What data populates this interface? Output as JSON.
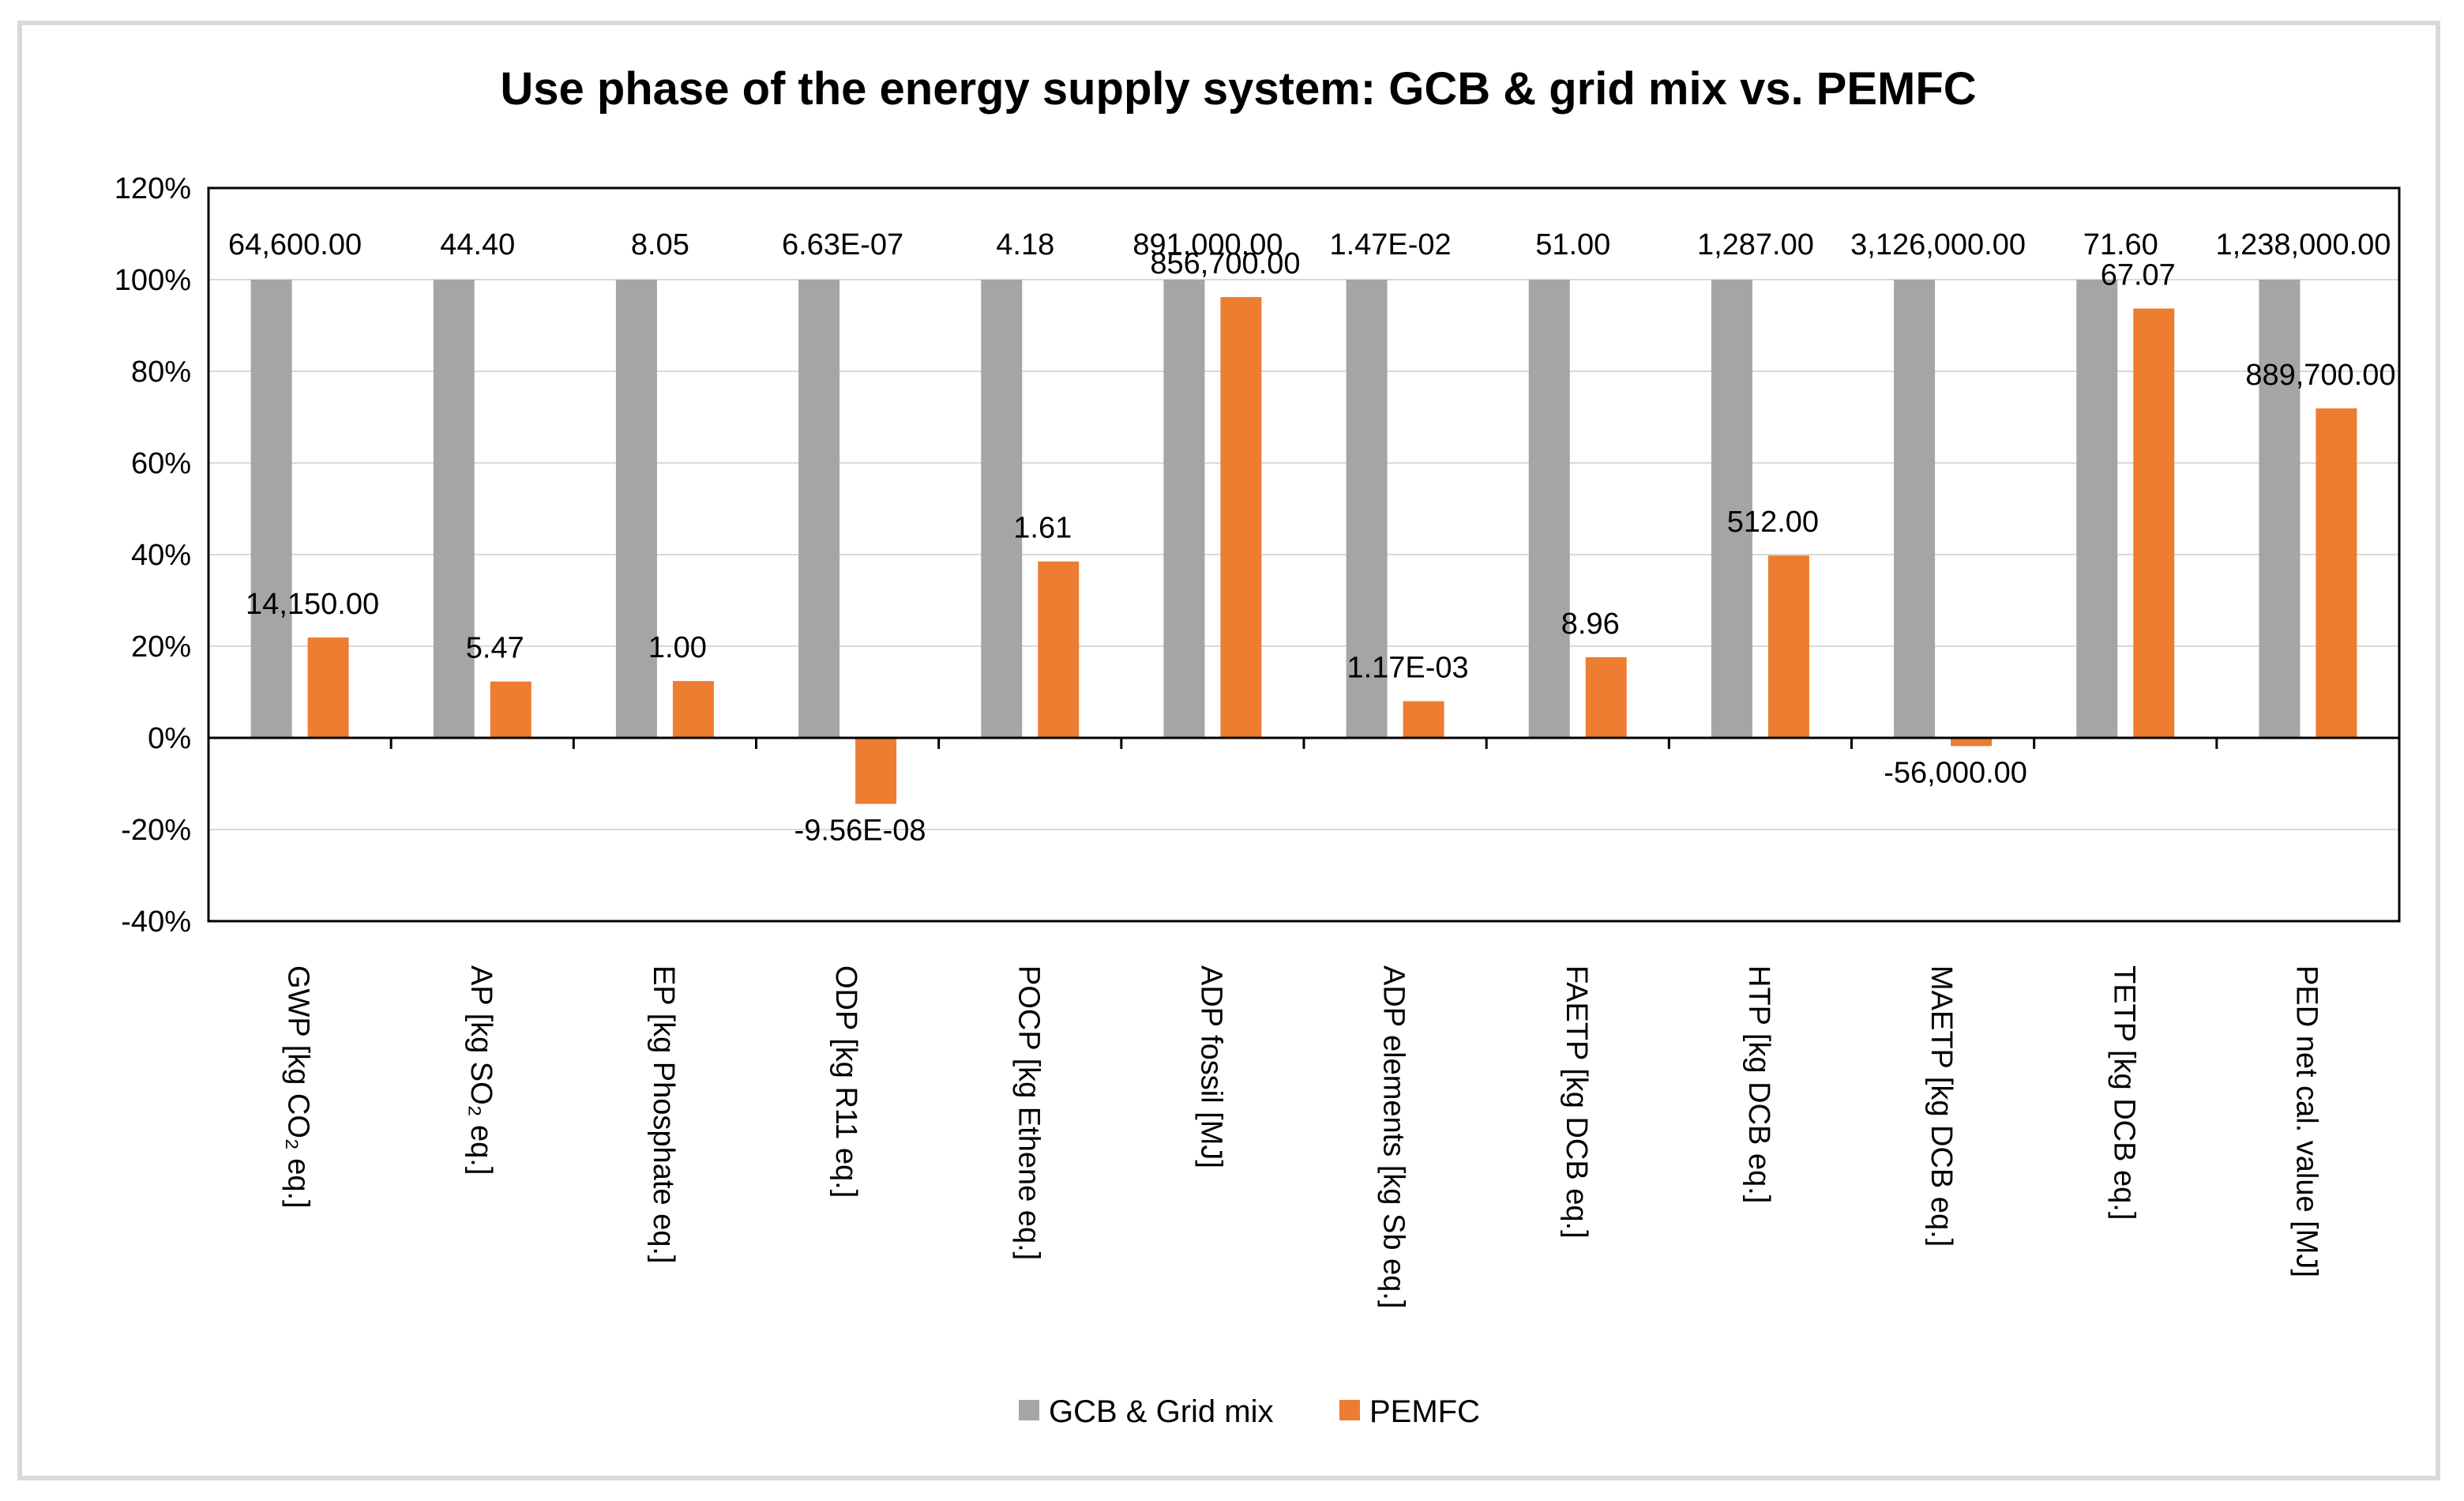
{
  "chart_data": {
    "type": "bar",
    "title": "Use phase of the energy supply system: GCB & grid mix vs. PEMFC",
    "xlabel": "",
    "ylabel": "",
    "ylim": [
      -40,
      120
    ],
    "yticks": [
      -40,
      -20,
      0,
      20,
      40,
      60,
      80,
      100,
      120
    ],
    "ytick_labels": [
      "-40%",
      "-20%",
      "0%",
      "20%",
      "40%",
      "60%",
      "80%",
      "100%",
      "120%"
    ],
    "categories": [
      "GWP  [kg CO₂ eq.]",
      "AP  [kg SO₂ eq.]",
      "EP [kg Phosphate eq.]",
      "ODP  [kg R11 eq.]",
      "POCP  [kg Ethene eq.]",
      "ADP fossil  [MJ]",
      "ADP elements   [kg Sb eq.]",
      "FAETP [kg DCB eq.]",
      "HTP [kg DCB eq.]",
      "MAETP [kg DCB eq.]",
      "TETP [kg DCB eq.]",
      "PED net cal. value [MJ]"
    ],
    "series": [
      {
        "name": "GCB & Grid mix",
        "color": "#a5a5a5",
        "values": [
          100,
          100,
          100,
          100,
          100,
          100,
          100,
          100,
          100,
          100,
          100,
          100
        ],
        "labels": [
          "64,600.00",
          "44.40",
          "8.05",
          "6.63E-07",
          "4.18",
          "891,000.00",
          "1.47E-02",
          "51.00",
          "1,287.00",
          "3,126,000.00",
          "71.60",
          "1,238,000.00"
        ]
      },
      {
        "name": "PEMFC",
        "color": "#ed7d31",
        "values": [
          21.9,
          12.3,
          12.4,
          -14.4,
          38.5,
          96.2,
          8.0,
          17.6,
          39.8,
          -1.8,
          93.7,
          71.9
        ],
        "labels": [
          "14,150.00",
          "5.47",
          "1.00",
          "-9.56E-08",
          "1.61",
          "856,700.00",
          "1.17E-03",
          "8.96",
          "512.00",
          "-56,000.00",
          "67.07",
          "889,700.00"
        ]
      }
    ],
    "grid": true,
    "legend": "bottom"
  }
}
